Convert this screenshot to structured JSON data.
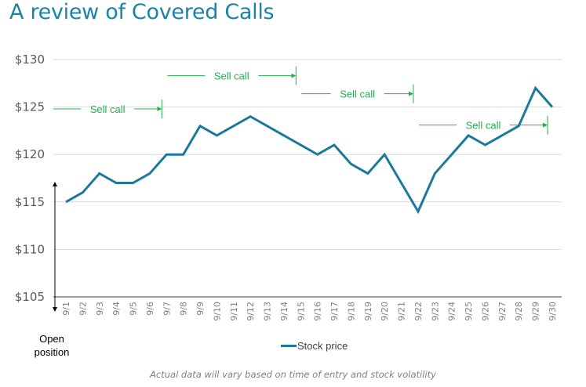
{
  "title": "A review of Covered Calls",
  "chart_data": {
    "type": "line",
    "title": "A review of Covered Calls",
    "xlabel": "",
    "ylabel": "",
    "categories": [
      "9/1",
      "9/2",
      "9/3",
      "9/4",
      "9/5",
      "9/6",
      "9/7",
      "9/8",
      "9/9",
      "9/10",
      "9/11",
      "9/12",
      "9/13",
      "9/14",
      "9/15",
      "9/16",
      "9/17",
      "9/18",
      "9/19",
      "9/20",
      "9/21",
      "9/22",
      "9/23",
      "9/24",
      "9/25",
      "9/26",
      "9/27",
      "9/28",
      "9/29",
      "9/30"
    ],
    "series": [
      {
        "name": "Stock price",
        "color": "#1b7a9c",
        "values": [
          115,
          116,
          118,
          117,
          117,
          118,
          120,
          120,
          123,
          122,
          123,
          124,
          123,
          122,
          121,
          120,
          121,
          119,
          118,
          120,
          117,
          114,
          118,
          120,
          122,
          121,
          122,
          123,
          127,
          125
        ]
      }
    ],
    "ylim": [
      105,
      130
    ],
    "yticks": [
      105,
      110,
      115,
      120,
      125,
      130
    ],
    "ytick_labels": [
      "$105",
      "$110",
      "$115",
      "$120",
      "$125",
      "$130"
    ],
    "grid": true,
    "legend": {
      "position": "bottom",
      "entries": [
        "Stock price"
      ]
    },
    "annotations": [
      {
        "text": "Sell call",
        "y": 124.8,
        "end": "9/7",
        "color": "#22b14c"
      },
      {
        "text": "Sell call",
        "y": 128.3,
        "start": "9/7",
        "end": "9/15",
        "color": "#22b14c"
      },
      {
        "text": "Sell call",
        "y": 126.4,
        "start": "9/15",
        "end": "9/22",
        "color": "#22b14c"
      },
      {
        "text": "Sell call",
        "y": 123.1,
        "start": "9/22",
        "end": "9/30",
        "color": "#22b14c"
      }
    ]
  },
  "open_position_label": "Open position",
  "caption": "Actual data will vary based on time of entry and stock volatility"
}
